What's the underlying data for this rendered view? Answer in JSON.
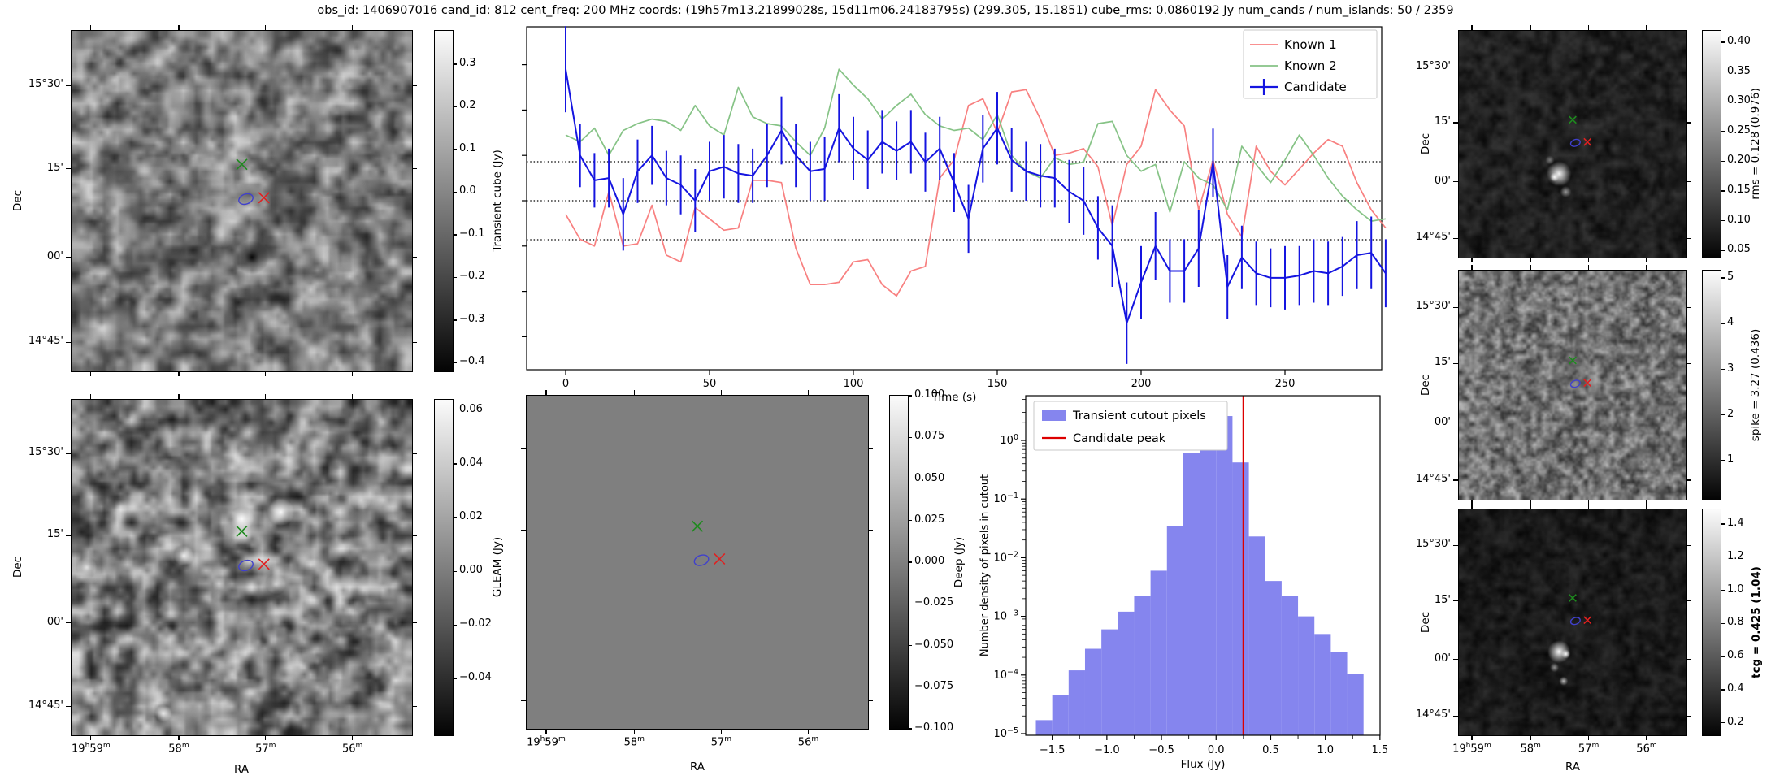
{
  "title": "obs_id: 1406907016 cand_id: 812 cent_freq: 200 MHz coords: (19h57m13.21899028s, 15d11m06.24183795s) (299.305, 15.1851) cube_rms: 0.0860192 Jy num_cands / num_islands: 50 / 2359",
  "axes": {
    "dec_label": "Dec",
    "ra_label": "RA",
    "dec_ticks": [
      "15°30'",
      "15'",
      "00'",
      "14°45'"
    ],
    "ra_ticks": [
      "19h59m",
      "58m",
      "57m",
      "56m"
    ]
  },
  "markers": {
    "green_x": "known-source-2-position",
    "red_x": "known-source-1-position",
    "blue_contour": "candidate-island-contour"
  },
  "colorbars": {
    "transient": {
      "label": "Transient cube (Jy)",
      "ticks": [
        "0.3",
        "0.2",
        "0.1",
        "0.0",
        "-0.1",
        "-0.2",
        "-0.3",
        "-0.4"
      ]
    },
    "gleam": {
      "label": "GLEAM (Jy)",
      "ticks": [
        "0.06",
        "0.04",
        "0.02",
        "0.00",
        "-0.02",
        "-0.04"
      ]
    },
    "deep": {
      "label": "Deep (Jy)",
      "ticks": [
        "0.100",
        "0.075",
        "0.050",
        "0.025",
        "0.000",
        "-0.025",
        "-0.050",
        "-0.075",
        "-0.100"
      ]
    },
    "rms": {
      "label": "rms = 0.128 (0.976)",
      "ticks": [
        "0.40",
        "0.35",
        "0.30",
        "0.25",
        "0.20",
        "0.15",
        "0.10",
        "0.05"
      ]
    },
    "spike": {
      "label": "spike = 3.27 (0.436)",
      "ticks": [
        "5",
        "4",
        "3",
        "2",
        "1"
      ]
    },
    "tcg": {
      "label": "tcg = 0.425 (1.04)",
      "ticks": [
        "1.4",
        "1.2",
        "1.0",
        "0.8",
        "0.6",
        "0.4",
        "0.2"
      ]
    }
  },
  "chart_data": [
    {
      "id": "lightcurve",
      "type": "line",
      "title": "",
      "xlabel": "Time (s)",
      "ylabel": "",
      "xlim": [
        -13.5,
        284
      ],
      "ylim": [
        -0.373,
        0.383
      ],
      "xticks": [
        0,
        50,
        100,
        150,
        200,
        250
      ],
      "hlines": [
        0.086,
        0.0,
        -0.086
      ],
      "legend_position": "upper right",
      "x": [
        0,
        5,
        10,
        15,
        20,
        25,
        30,
        35,
        40,
        45,
        50,
        55,
        60,
        65,
        70,
        75,
        80,
        85,
        90,
        95,
        100,
        105,
        110,
        115,
        120,
        125,
        130,
        135,
        140,
        145,
        150,
        155,
        160,
        165,
        170,
        175,
        180,
        185,
        190,
        195,
        200,
        205,
        210,
        215,
        220,
        225,
        230,
        235,
        240,
        245,
        250,
        255,
        260,
        265,
        270,
        275,
        280,
        285
      ],
      "series": [
        {
          "name": "Known 1",
          "color": "#f88080",
          "values": [
            -0.03,
            -0.085,
            -0.1,
            0.02,
            -0.1,
            -0.095,
            -0.01,
            -0.12,
            -0.135,
            -0.015,
            -0.04,
            -0.065,
            -0.06,
            0.045,
            0.045,
            0.04,
            -0.105,
            -0.185,
            -0.185,
            -0.18,
            -0.135,
            -0.13,
            -0.185,
            -0.21,
            -0.155,
            -0.145,
            0.05,
            0.09,
            0.21,
            0.225,
            0.15,
            0.24,
            0.245,
            0.18,
            0.1,
            0.105,
            0.115,
            0.075,
            -0.055,
            0.08,
            0.12,
            0.245,
            0.2,
            0.165,
            -0.02,
            0.09,
            -0.03,
            -0.08,
            0.12,
            0.065,
            0.035,
            0.07,
            0.105,
            0.135,
            0.12,
            0.04,
            -0.02,
            -0.06
          ]
        },
        {
          "name": "Known 2",
          "color": "#86c386",
          "values": [
            0.145,
            0.13,
            0.16,
            0.1,
            0.155,
            0.17,
            0.18,
            0.175,
            0.155,
            0.21,
            0.165,
            0.145,
            0.25,
            0.185,
            0.17,
            0.165,
            0.13,
            0.1,
            0.16,
            0.29,
            0.255,
            0.225,
            0.18,
            0.21,
            0.235,
            0.19,
            0.165,
            0.155,
            0.16,
            0.135,
            0.19,
            0.1,
            0.065,
            0.05,
            0.095,
            0.08,
            0.085,
            0.17,
            0.175,
            0.1,
            0.065,
            0.08,
            -0.025,
            0.086,
            0.05,
            0.035,
            -0.02,
            0.12,
            0.08,
            0.04,
            0.09,
            0.145,
            0.1,
            0.05,
            0.01,
            -0.02,
            -0.045,
            -0.04
          ]
        },
        {
          "name": "Candidate",
          "color": "#1515e0",
          "values": [
            0.29,
            0.1,
            0.045,
            0.05,
            -0.03,
            0.065,
            0.1,
            0.05,
            0.035,
            0.0,
            0.065,
            0.075,
            0.06,
            0.055,
            0.1,
            0.155,
            0.1,
            0.065,
            0.07,
            0.16,
            0.115,
            0.09,
            0.13,
            0.11,
            0.13,
            0.085,
            0.115,
            0.04,
            -0.04,
            0.115,
            0.16,
            0.09,
            0.065,
            0.055,
            0.05,
            0.02,
            0.0,
            -0.06,
            -0.1,
            -0.27,
            -0.18,
            -0.1,
            -0.155,
            -0.155,
            -0.105,
            0.084,
            -0.19,
            -0.125,
            -0.16,
            -0.17,
            -0.17,
            -0.165,
            -0.155,
            -0.16,
            -0.145,
            -0.12,
            -0.115,
            -0.16
          ],
          "errors": [
            0.095,
            0.07,
            0.06,
            0.065,
            0.08,
            0.07,
            0.065,
            0.06,
            0.065,
            0.07,
            0.065,
            0.07,
            0.065,
            0.06,
            0.07,
            0.075,
            0.07,
            0.065,
            0.07,
            0.075,
            0.07,
            0.065,
            0.07,
            0.065,
            0.07,
            0.065,
            0.07,
            0.065,
            0.075,
            0.075,
            0.08,
            0.07,
            0.065,
            0.07,
            0.065,
            0.07,
            0.075,
            0.07,
            0.09,
            0.09,
            0.08,
            0.075,
            0.07,
            0.07,
            0.085,
            0.075,
            0.07,
            0.07,
            0.07,
            0.065,
            0.07,
            0.065,
            0.07,
            0.07,
            0.065,
            0.075,
            0.08,
            0.075
          ]
        }
      ]
    },
    {
      "id": "pixel-histogram",
      "type": "bar",
      "title": "",
      "xlabel": "Flux (Jy)",
      "ylabel": "Number density of pixels in cutout",
      "yscale": "log",
      "xlim": [
        -1.74,
        1.5
      ],
      "ylim": [
        1e-05,
        6
      ],
      "xticks": [
        -1.5,
        -1.0,
        -0.5,
        0.0,
        0.5,
        1.0,
        1.5
      ],
      "ytick_exponents": [
        0,
        -1,
        -2,
        -3,
        -4,
        -5
      ],
      "bin_start": -1.65,
      "bin_width": 0.15,
      "bar_color": "#8585ee",
      "series_label": "Transient cutout pixels",
      "values": [
        1.7e-05,
        4.5e-05,
        0.00012,
        0.00028,
        0.0006,
        0.0012,
        0.0022,
        0.006,
        0.035,
        0.6,
        3.0,
        2.6,
        0.42,
        0.023,
        0.004,
        0.0022,
        0.001,
        0.0005,
        0.00025,
        0.000105
      ],
      "vline": {
        "label": "Candidate peak",
        "x": 0.25,
        "color": "#dd0000"
      },
      "legend_position": "upper left"
    }
  ]
}
